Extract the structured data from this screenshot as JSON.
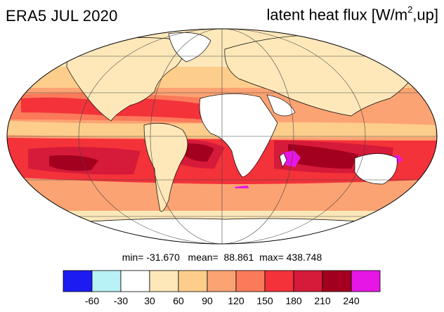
{
  "header": {
    "left_title": "ERA5 JUL 2020",
    "right_title_pre": "latent heat flux [W/m",
    "right_title_sup": "2",
    "right_title_post": ",up]"
  },
  "stats": {
    "min_label": "min=",
    "min": "-31.670",
    "mean_label": "mean=",
    "mean": "88.861",
    "max_label": "max=",
    "max": "438.748"
  },
  "colorbar": {
    "bins": [
      "#1c1cf2",
      "#b8f1f6",
      "#ffffff",
      "#fee8b9",
      "#fdcd8c",
      "#fca373",
      "#fb7a5a",
      "#f4323a",
      "#d61a3a",
      "#a3001f",
      "#e617e6"
    ],
    "ticks": [
      "-60",
      "-30",
      "30",
      "60",
      "90",
      "120",
      "150",
      "180",
      "210",
      "240"
    ]
  },
  "colors": {
    "land": "#ffffff",
    "ocean_base": "#fca373",
    "grid": "#444444"
  }
}
